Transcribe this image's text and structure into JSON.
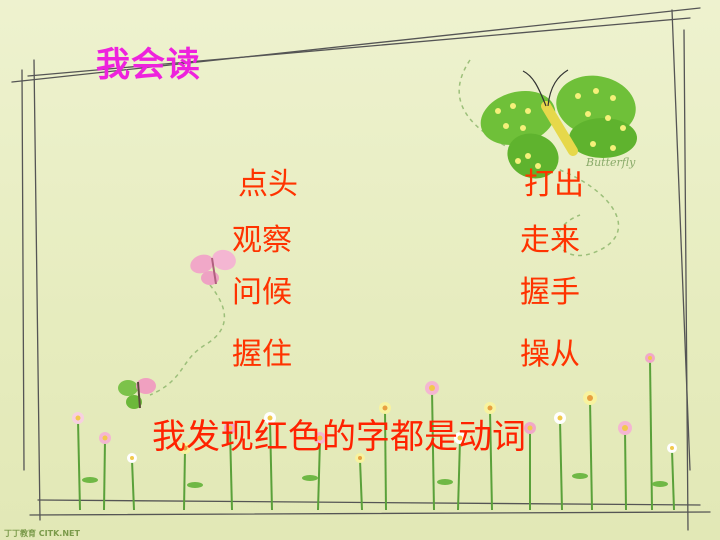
{
  "slide": {
    "title": "我会读",
    "words": [
      {
        "text": "点头"
      },
      {
        "text": "打出"
      },
      {
        "text": "观察"
      },
      {
        "text": "走来"
      },
      {
        "text": "问候"
      },
      {
        "text": "握手"
      },
      {
        "text": "握住"
      },
      {
        "text": "操从"
      }
    ],
    "sentence": "我发现红色的字都是动词",
    "butterfly_label": "Butterfly",
    "watermark": "丁丁教育 CITK.NET",
    "colors": {
      "title": "#ee22dd",
      "words": "#ff3300",
      "background": "#e8edc4"
    }
  }
}
